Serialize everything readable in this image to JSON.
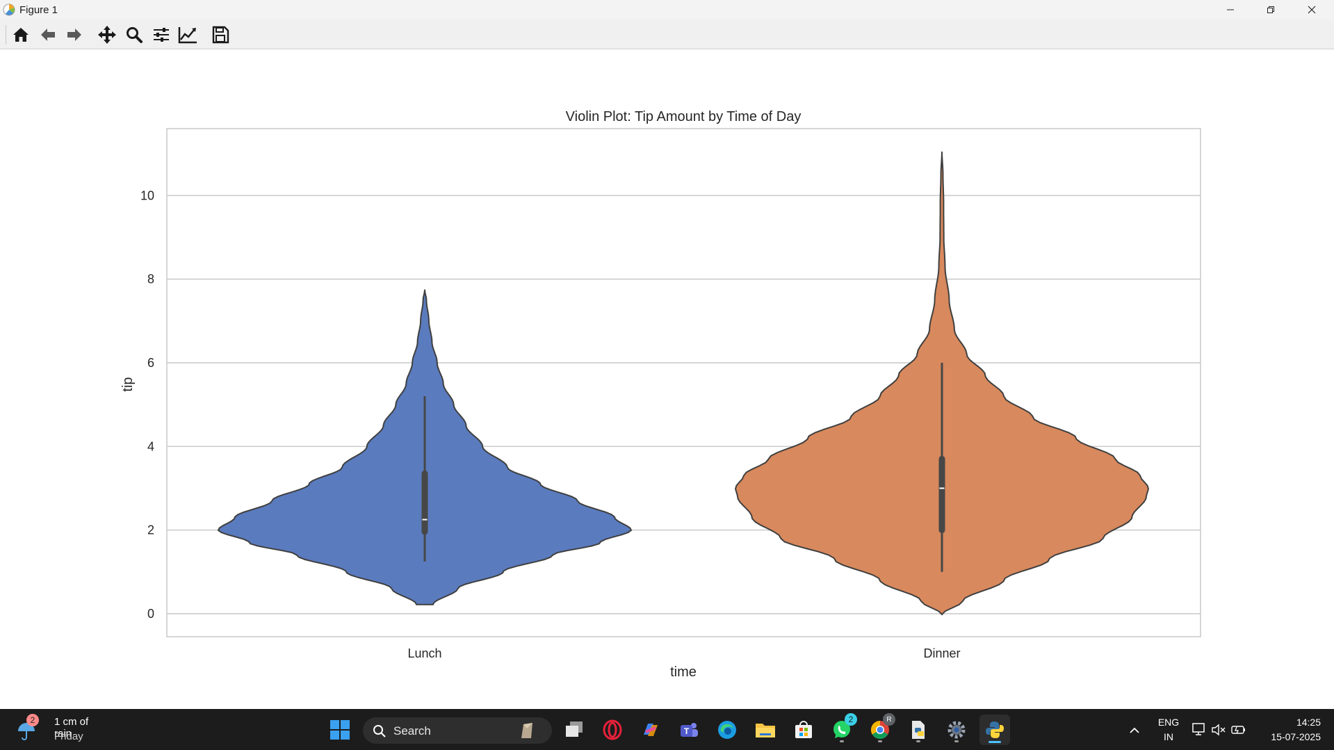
{
  "window": {
    "title": "Figure 1"
  },
  "toolbar": {
    "buttons": [
      "home-icon",
      "back-arrow-icon",
      "forward-arrow-icon",
      "pan-icon",
      "zoom-icon",
      "configure-subplots-icon",
      "edit-axis-icon",
      "save-icon"
    ]
  },
  "chart_data": {
    "type": "violin",
    "title": "Violin Plot: Tip Amount by Time of Day",
    "xlabel": "time",
    "ylabel": "tip",
    "ylim": [
      -0.55,
      11.6
    ],
    "yticks": [
      0,
      2,
      4,
      6,
      8,
      10
    ],
    "grid": true,
    "categories": [
      "Lunch",
      "Dinner"
    ],
    "series": [
      {
        "category": "Lunch",
        "color": "#5a7bbe",
        "kde_min": 0.22,
        "kde_max": 7.75,
        "whisker": [
          1.25,
          5.2
        ],
        "quartiles": [
          1.96,
          3.35
        ],
        "median": 2.25,
        "density_profile": [
          [
            0.22,
            0.04
          ],
          [
            0.6,
            0.16
          ],
          [
            1.0,
            0.38
          ],
          [
            1.4,
            0.62
          ],
          [
            1.7,
            0.85
          ],
          [
            2.0,
            1.0
          ],
          [
            2.3,
            0.92
          ],
          [
            2.7,
            0.74
          ],
          [
            3.1,
            0.56
          ],
          [
            3.5,
            0.4
          ],
          [
            4.0,
            0.28
          ],
          [
            4.5,
            0.2
          ],
          [
            5.0,
            0.14
          ],
          [
            5.5,
            0.09
          ],
          [
            6.0,
            0.06
          ],
          [
            6.5,
            0.035
          ],
          [
            7.0,
            0.02
          ],
          [
            7.5,
            0.008
          ],
          [
            7.75,
            0.0
          ]
        ]
      },
      {
        "category": "Dinner",
        "color": "#d8895d",
        "kde_min": -0.02,
        "kde_max": 11.05,
        "whisker": [
          1.0,
          6.0
        ],
        "quartiles": [
          2.0,
          3.7
        ],
        "median": 3.0,
        "density_profile": [
          [
            -0.02,
            0.0
          ],
          [
            0.3,
            0.1
          ],
          [
            0.8,
            0.3
          ],
          [
            1.3,
            0.52
          ],
          [
            1.8,
            0.78
          ],
          [
            2.3,
            0.92
          ],
          [
            2.8,
            0.99
          ],
          [
            3.0,
            1.0
          ],
          [
            3.3,
            0.96
          ],
          [
            3.7,
            0.84
          ],
          [
            4.2,
            0.65
          ],
          [
            4.7,
            0.44
          ],
          [
            5.2,
            0.3
          ],
          [
            5.7,
            0.21
          ],
          [
            6.2,
            0.12
          ],
          [
            6.8,
            0.06
          ],
          [
            7.5,
            0.035
          ],
          [
            8.3,
            0.015
          ],
          [
            9.0,
            0.009
          ],
          [
            9.8,
            0.008
          ],
          [
            10.5,
            0.005
          ],
          [
            11.05,
            0.0
          ]
        ]
      }
    ]
  },
  "taskbar": {
    "weather_line1": "1 cm of rain",
    "weather_line2": "Friday",
    "weather_badge": "2",
    "search_label": "Search",
    "whatsapp_badge": "2",
    "chrome_badge": "R",
    "lang_line1": "ENG",
    "lang_line2": "IN",
    "time": "14:25",
    "date": "15-07-2025"
  }
}
